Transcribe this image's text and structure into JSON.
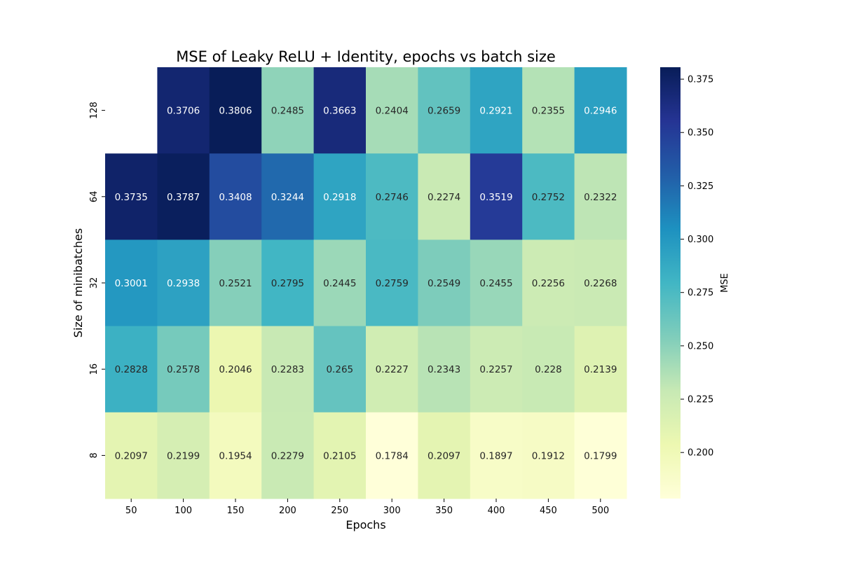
{
  "chart_data": {
    "type": "heatmap",
    "title": "MSE of Leaky ReLU + Identity, epochs vs batch size",
    "xlabel": "Epochs",
    "ylabel": "Size of minibatches",
    "x_categories": [
      "50",
      "100",
      "150",
      "200",
      "250",
      "300",
      "350",
      "400",
      "450",
      "500"
    ],
    "y_categories": [
      "128",
      "64",
      "32",
      "16",
      "8"
    ],
    "values": [
      [
        null,
        0.3706,
        0.3806,
        0.2485,
        0.3663,
        0.2404,
        0.2659,
        0.2921,
        0.2355,
        0.2946
      ],
      [
        0.3735,
        0.3787,
        0.3408,
        0.3244,
        0.2918,
        0.2746,
        0.2274,
        0.3519,
        0.2752,
        0.2322
      ],
      [
        0.3001,
        0.2938,
        0.2521,
        0.2795,
        0.2445,
        0.2759,
        0.2549,
        0.2455,
        0.2256,
        0.2268
      ],
      [
        0.2828,
        0.2578,
        0.2046,
        0.2283,
        0.265,
        0.2227,
        0.2343,
        0.2257,
        0.228,
        0.2139
      ],
      [
        0.2097,
        0.2199,
        0.1954,
        0.2279,
        0.2105,
        0.1784,
        0.2097,
        0.1897,
        0.1912,
        0.1799
      ]
    ],
    "annotations": [
      [
        "",
        "0.3706",
        "0.3806",
        "0.2485",
        "0.3663",
        "0.2404",
        "0.2659",
        "0.2921",
        "0.2355",
        "0.2946"
      ],
      [
        "0.3735",
        "0.3787",
        "0.3408",
        "0.3244",
        "0.2918",
        "0.2746",
        "0.2274",
        "0.3519",
        "0.2752",
        "0.2322"
      ],
      [
        "0.3001",
        "0.2938",
        "0.2521",
        "0.2795",
        "0.2445",
        "0.2759",
        "0.2549",
        "0.2455",
        "0.2256",
        "0.2268"
      ],
      [
        "0.2828",
        "0.2578",
        "0.2046",
        "0.2283",
        "0.265",
        "0.2227",
        "0.2343",
        "0.2257",
        "0.228",
        "0.2139"
      ],
      [
        "0.2097",
        "0.2199",
        "0.1954",
        "0.2279",
        "0.2105",
        "0.1784",
        "0.2097",
        "0.1897",
        "0.1912",
        "0.1799"
      ]
    ],
    "colorbar": {
      "label": "MSE",
      "range": [
        0.1784,
        0.3806
      ],
      "ticks": [
        "0.200",
        "0.225",
        "0.250",
        "0.275",
        "0.300",
        "0.325",
        "0.350",
        "0.375"
      ],
      "colormap": "YlGnBu",
      "colormap_stops": [
        "#ffffd9",
        "#edf8b1",
        "#c7e9b4",
        "#7fcdbb",
        "#41b6c4",
        "#1d91c0",
        "#225ea8",
        "#253494",
        "#081d58"
      ]
    },
    "grid": false
  }
}
